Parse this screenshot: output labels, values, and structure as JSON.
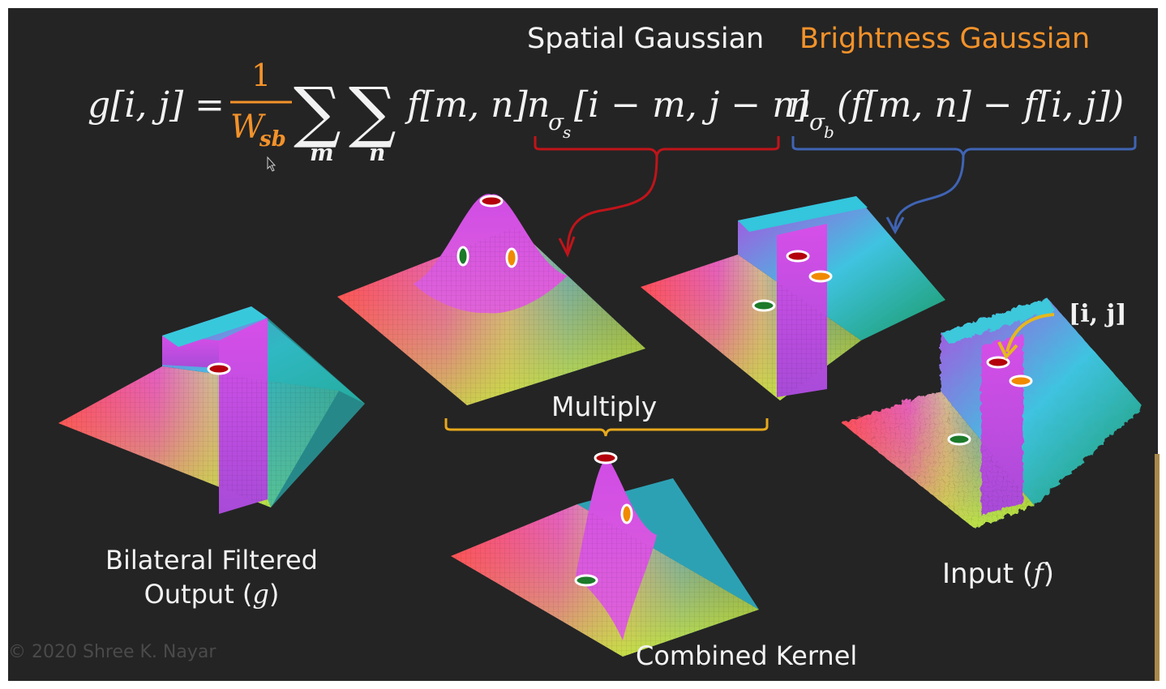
{
  "header": {
    "spatial_title": "Spatial Gaussian",
    "brightness_title": "Brightness Gaussian"
  },
  "equation": {
    "lhs": "g[i, j] =",
    "numerator": "1",
    "denominator_main": "W",
    "denominator_sub": "sb",
    "sum_symbol": "∑",
    "sum_index_1": "m",
    "sum_index_2": "n",
    "input_term": "f[m, n]",
    "spatial_kernel": "n",
    "spatial_sigma": "σ",
    "spatial_sigma_sub": "s",
    "spatial_args": "[i − m, j − n]",
    "brightness_kernel": "n",
    "brightness_sigma": "σ",
    "brightness_sigma_sub": "b",
    "brightness_args": "(f[m, n] − f[i, j])"
  },
  "labels": {
    "multiply": "Multiply",
    "bilateral_line1": "Bilateral Filtered",
    "bilateral_line2": "Output (",
    "bilateral_var": "g",
    "bilateral_close": ")",
    "combined": "Combined Kernel",
    "input": "Input (",
    "input_var": "f",
    "input_close": ")",
    "ij_marker": "[i, j]",
    "copyright": "© 2020 Shree K. Nayar"
  },
  "colors": {
    "background": "#242424",
    "spatial_brace": "#c0141a",
    "brightness_brace": "#3f64b4",
    "multiply_brace": "#e6a81c",
    "ij_arrow": "#e6b81c",
    "accent_orange": "#f3922a",
    "marker_red": "#b3000c",
    "marker_green": "#1c7a2a",
    "marker_orange": "#f08a00"
  },
  "icons": [
    "mouse-cursor-icon"
  ]
}
